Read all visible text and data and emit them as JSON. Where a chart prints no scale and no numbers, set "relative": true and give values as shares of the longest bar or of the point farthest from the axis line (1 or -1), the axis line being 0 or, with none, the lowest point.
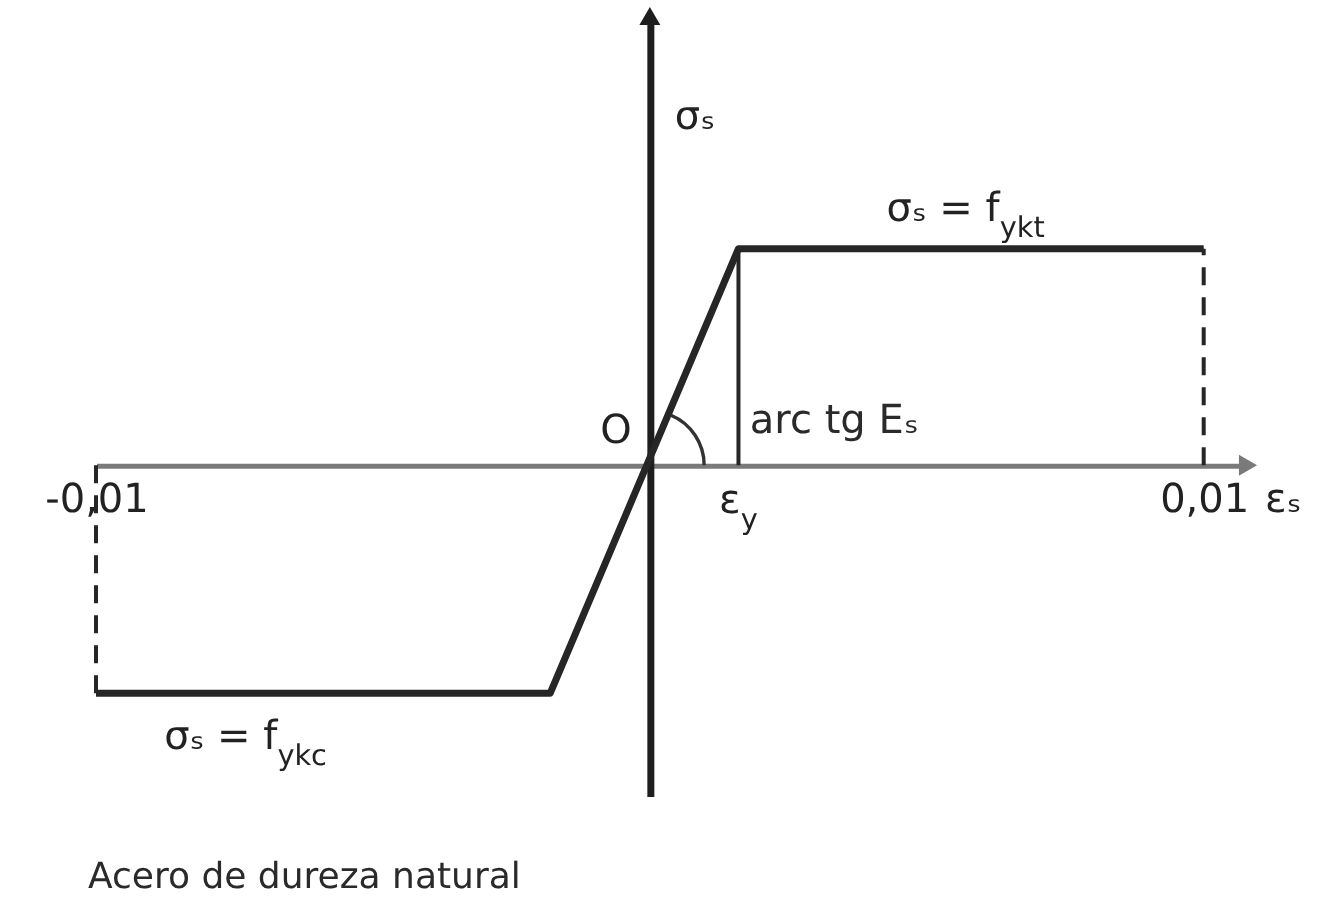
{
  "chart_data": {
    "type": "line",
    "relative": true,
    "xlabel": "εₛ",
    "ylabel": "σₛ",
    "xlim": [
      -0.01,
      0.0108
    ],
    "xticks": [
      {
        "value": -0.01,
        "label": "-0,01"
      },
      {
        "value": 0.01,
        "label": "0,01"
      }
    ],
    "series": [
      {
        "color": "#262626",
        "x": [
          -0.01,
          -0.0018,
          0.0016,
          0.01
        ],
        "values": [
          -1,
          -1,
          0.95,
          0.95
        ]
      },
      {
        "color": "#262626",
        "line_style": "dashed",
        "x": [
          -0.01,
          -0.01
        ],
        "values": [
          0,
          -1
        ]
      },
      {
        "color": "#262626",
        "line_style": "dashed",
        "x": [
          0.01,
          0.01
        ],
        "values": [
          0,
          0.95
        ]
      },
      {
        "color": "#262626",
        "x": [
          0.0016,
          0.0016
        ],
        "values": [
          0,
          0.95
        ]
      }
    ],
    "annotations": [
      {
        "text": "σₛ = f$_{ykt}$",
        "x": 0.0057,
        "y": 0.95
      },
      {
        "text": "σₛ = f$_{ykc}$",
        "x": -0.0073,
        "y": -1
      },
      {
        "text": "O",
        "x": 0,
        "y": 0
      },
      "arc tg Eₛ",
      {
        "text": "ε$_{y}$",
        "x": 0.0016,
        "y": 0
      },
      "Acero de dureza natural"
    ]
  }
}
